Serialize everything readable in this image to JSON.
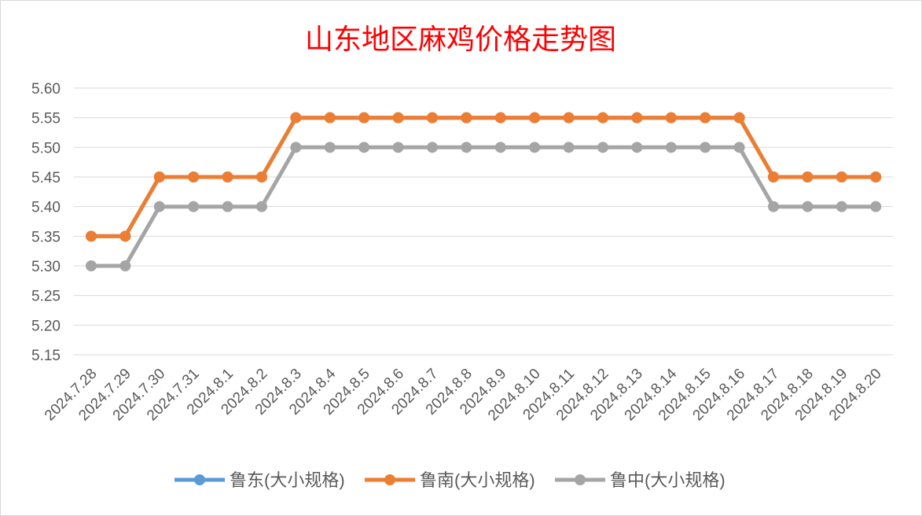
{
  "chart_data": {
    "type": "line",
    "title": "山东地区麻鸡价格走势图",
    "xlabel": "",
    "ylabel": "",
    "ylim": [
      5.15,
      5.6
    ],
    "yticks": [
      "5.15",
      "5.20",
      "5.25",
      "5.30",
      "5.35",
      "5.40",
      "5.45",
      "5.50",
      "5.55",
      "5.60"
    ],
    "grid": true,
    "legend_position": "bottom",
    "categories": [
      "2024.7.28",
      "2024.7.29",
      "2024.7.30",
      "2024.7.31",
      "2024.8.1",
      "2024.8.2",
      "2024.8.3",
      "2024.8.4",
      "2024.8.5",
      "2024.8.6",
      "2024.8.7",
      "2024.8.8",
      "2024.8.9",
      "2024.8.10",
      "2024.8.11",
      "2024.8.12",
      "2024.8.13",
      "2024.8.14",
      "2024.8.15",
      "2024.8.16",
      "2024.8.17",
      "2024.8.18",
      "2024.8.19",
      "2024.8.20"
    ],
    "series": [
      {
        "name": "鲁东(大小规格)",
        "color": "#5B9BD5",
        "values": [
          5.35,
          5.35,
          5.45,
          5.45,
          5.45,
          5.45,
          5.55,
          5.55,
          5.55,
          5.55,
          5.55,
          5.55,
          5.55,
          5.55,
          5.55,
          5.55,
          5.55,
          5.55,
          5.55,
          5.55,
          5.45,
          5.45,
          5.45,
          5.45
        ]
      },
      {
        "name": "鲁南(大小规格)",
        "color": "#ED7D31",
        "values": [
          5.35,
          5.35,
          5.45,
          5.45,
          5.45,
          5.45,
          5.55,
          5.55,
          5.55,
          5.55,
          5.55,
          5.55,
          5.55,
          5.55,
          5.55,
          5.55,
          5.55,
          5.55,
          5.55,
          5.55,
          5.45,
          5.45,
          5.45,
          5.45
        ]
      },
      {
        "name": "鲁中(大小规格)",
        "color": "#A5A5A5",
        "values": [
          5.3,
          5.3,
          5.4,
          5.4,
          5.4,
          5.4,
          5.5,
          5.5,
          5.5,
          5.5,
          5.5,
          5.5,
          5.5,
          5.5,
          5.5,
          5.5,
          5.5,
          5.5,
          5.5,
          5.5,
          5.4,
          5.4,
          5.4,
          5.4
        ]
      }
    ],
    "title_color": "#FF0000",
    "axis_text_color": "#595959",
    "grid_color": "#D9D9D9"
  }
}
